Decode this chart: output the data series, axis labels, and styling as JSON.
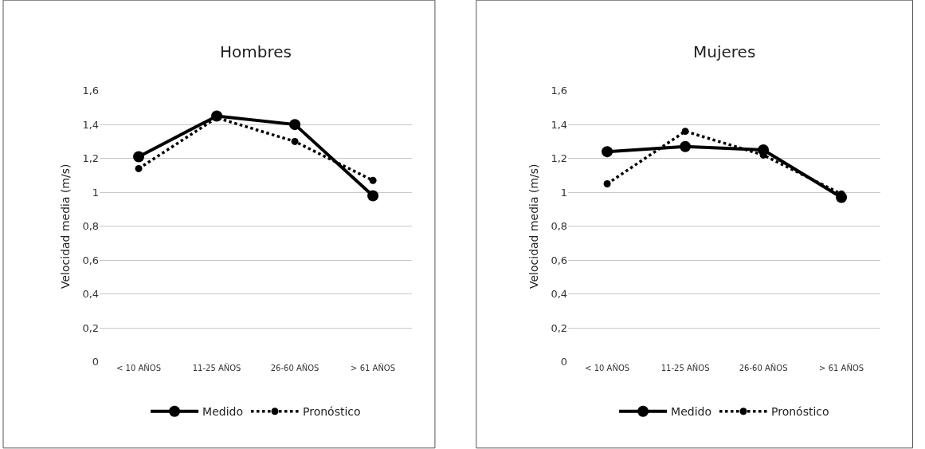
{
  "chart_data": [
    {
      "type": "line",
      "title": "Hombres",
      "ylabel": "Velocidad media (m/s)",
      "categories": [
        "< 10 AÑOS",
        "11-25 AÑOS",
        "26-60 AÑOS",
        "> 61 AÑOS"
      ],
      "series": [
        {
          "name": "Medido",
          "color": "#000000",
          "line_style": "solid",
          "values": [
            1.21,
            1.45,
            1.4,
            0.98
          ]
        },
        {
          "name": "Pronóstico",
          "color": "#000000",
          "line_style": "dotted",
          "values": [
            1.14,
            1.44,
            1.3,
            1.07
          ]
        }
      ],
      "ylim": [
        0,
        1.6
      ],
      "yticks": [
        0,
        {
          "value": 0.2,
          "label": "0,2"
        },
        {
          "value": 0.4,
          "label": "0,4"
        },
        {
          "value": 0.6,
          "label": "0,6"
        },
        {
          "value": 0.8,
          "label": "0,8"
        },
        1,
        {
          "value": 1.2,
          "label": "1,2"
        },
        {
          "value": 1.4,
          "label": "1,4"
        },
        {
          "value": 1.6,
          "label": "1,6"
        }
      ],
      "grid": "y",
      "legend": "bottom",
      "marker": "circle"
    },
    {
      "type": "line",
      "title": "Mujeres",
      "ylabel": "Velocidad media (m/s)",
      "categories": [
        "< 10 AÑOS",
        "11-25 AÑOS",
        "26-60 AÑOS",
        "> 61 AÑOS"
      ],
      "series": [
        {
          "name": "Medido",
          "color": "#000000",
          "line_style": "solid",
          "values": [
            1.24,
            1.27,
            1.25,
            0.97
          ]
        },
        {
          "name": "Pronóstico",
          "color": "#000000",
          "line_style": "dotted",
          "values": [
            1.05,
            1.36,
            1.22,
            0.99
          ]
        }
      ],
      "ylim": [
        0,
        1.6
      ],
      "yticks": [
        0,
        {
          "value": 0.2,
          "label": "0,2"
        },
        {
          "value": 0.4,
          "label": "0,4"
        },
        {
          "value": 0.6,
          "label": "0,6"
        },
        {
          "value": 0.8,
          "label": "0,8"
        },
        1,
        {
          "value": 1.2,
          "label": "1,2"
        },
        {
          "value": 1.4,
          "label": "1,4"
        },
        {
          "value": 1.6,
          "label": "1,6"
        }
      ],
      "grid": "y",
      "legend": "bottom",
      "marker": "circle"
    }
  ]
}
